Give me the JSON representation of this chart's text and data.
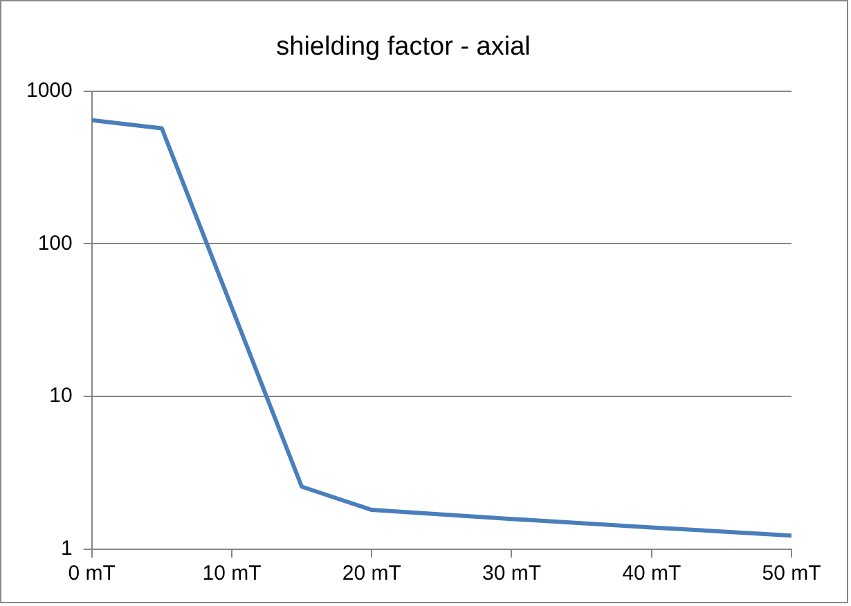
{
  "chart_data": {
    "type": "line",
    "title": "shielding factor - axial",
    "x": [
      0,
      5,
      15,
      20,
      30,
      40,
      50
    ],
    "series": [
      {
        "color": "#4a7ebb",
        "values": [
          645,
          570,
          2.57,
          1.81,
          1.58,
          1.39,
          1.23
        ]
      }
    ],
    "log": "y",
    "xlim": [
      0,
      50
    ],
    "xticks": [
      {
        "value": 0,
        "label": "0 mT"
      },
      {
        "value": 10,
        "label": "10 mT"
      },
      {
        "value": 20,
        "label": "20 mT"
      },
      {
        "value": 30,
        "label": "30 mT"
      },
      {
        "value": 40,
        "label": "40 mT"
      },
      {
        "value": 50,
        "label": "50 mT"
      }
    ],
    "ylim": [
      1,
      1000
    ],
    "yticks": [
      1,
      10,
      100,
      1000
    ],
    "grid": "y",
    "marker": "none",
    "line_style": "solid",
    "legend": false
  }
}
